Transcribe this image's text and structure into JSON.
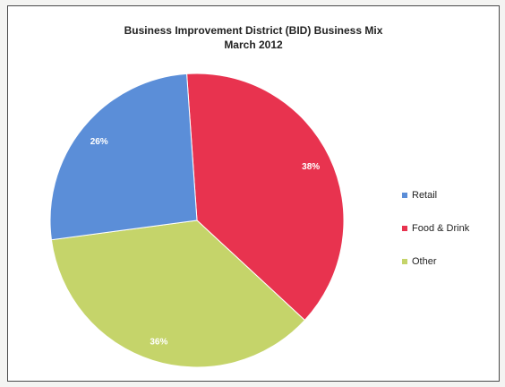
{
  "chart_data": {
    "type": "pie",
    "title": "Business Improvement District (BID) Business Mix",
    "subtitle": "March 2012",
    "categories": [
      "Food & Drink",
      "Other",
      "Retail"
    ],
    "values": [
      38,
      36,
      26
    ],
    "labels": [
      "38%",
      "36%",
      "26%"
    ],
    "colors": [
      "#e8334f",
      "#c5d46a",
      "#5b8ed8"
    ],
    "legend": {
      "placement": "right",
      "entries": [
        {
          "label": "Retail",
          "color": "#5b8ed8"
        },
        {
          "label": "Food & Drink",
          "color": "#e8334f"
        },
        {
          "label": "Other",
          "color": "#c5d46a"
        }
      ]
    }
  }
}
